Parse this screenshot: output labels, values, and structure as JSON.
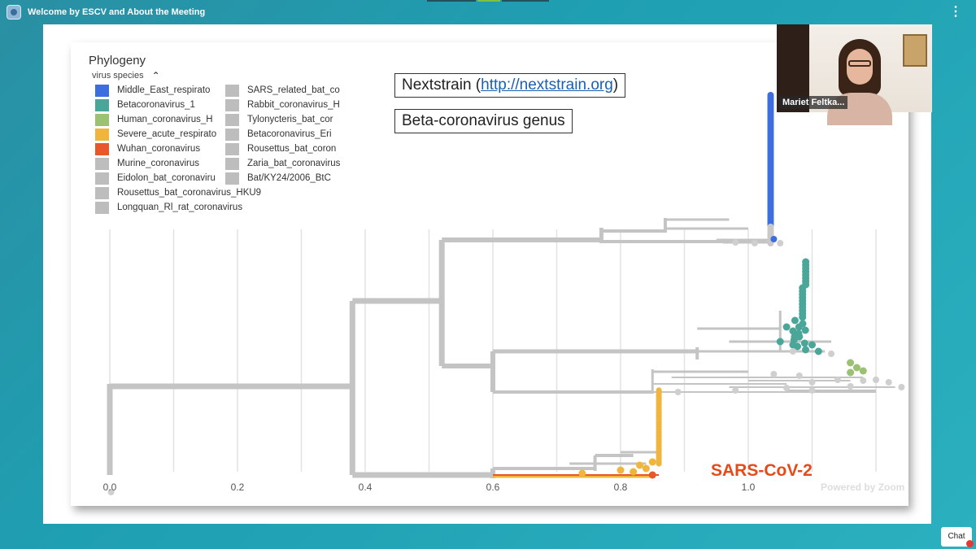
{
  "window": {
    "title": "Welcome by ESCV and About the Meeting",
    "more_icon": "more-dots-icon",
    "app_icon": "zoom-app-icon"
  },
  "slide": {
    "phylogeny_title": "Phylogeny",
    "legend_header": "virus species",
    "legend_toggle_icon": "chevron-up-icon",
    "legend": [
      {
        "label": "Middle_East_respirato",
        "color": "#3d6ee0"
      },
      {
        "label": "Betacoronavirus_1",
        "color": "#4aa699"
      },
      {
        "label": "Human_coronavirus_H",
        "color": "#9bc272"
      },
      {
        "label": "Severe_acute_respirato",
        "color": "#f0b53c"
      },
      {
        "label": "Wuhan_coronavirus",
        "color": "#e8572a"
      },
      {
        "label": "Murine_coronavirus",
        "color": "#bdbdbd"
      },
      {
        "label": "Eidolon_bat_coronaviru",
        "color": "#bdbdbd"
      },
      {
        "label": "Rousettus_bat_coronavirus_HKU9",
        "color": "#bdbdbd"
      },
      {
        "label": "Longquan_Rl_rat_coronavirus",
        "color": "#bdbdbd"
      },
      {
        "label": "SARS_related_bat_co",
        "color": "#bdbdbd"
      },
      {
        "label": "Rabbit_coronavirus_H",
        "color": "#bdbdbd"
      },
      {
        "label": "Tylonycteris_bat_cor",
        "color": "#bdbdbd"
      },
      {
        "label": "Betacoronavirus_Eri",
        "color": "#bdbdbd"
      },
      {
        "label": "Rousettus_bat_coron",
        "color": "#bdbdbd"
      },
      {
        "label": "Zaria_bat_coronavirus",
        "color": "#bdbdbd"
      },
      {
        "label": "Bat/KY24/2006_BtC",
        "color": "#bdbdbd"
      }
    ],
    "nextstrain_prefix": "Nextstrain (",
    "nextstrain_link": "http://nextstrain.org",
    "nextstrain_suffix": ")",
    "genus_label": "Beta-coronavirus genus",
    "sars_label": "SARS-CoV-2",
    "watermark": "Powered by Zoom",
    "x_ticks": [
      "0.0",
      "0.2",
      "0.4",
      "0.6",
      "0.8",
      "1.0"
    ]
  },
  "chart_data": {
    "type": "scatter",
    "title": "Phylogeny",
    "xlabel": "",
    "ylabel": "",
    "xlim": [
      0,
      1.2
    ],
    "x_ticks": [
      0.0,
      0.2,
      0.4,
      0.6,
      0.8,
      1.0
    ],
    "series": [
      {
        "name": "Middle_East_respirato",
        "color": "#3d6ee0",
        "x": [
          1.03,
          1.03,
          1.03,
          1.03,
          1.03,
          1.03
        ],
        "y_rank": [
          1,
          2,
          3,
          4,
          5,
          6
        ]
      },
      {
        "name": "Betacoronavirus_1",
        "color": "#4aa699",
        "x": [
          1.12,
          1.1,
          1.08,
          1.06,
          1.1
        ],
        "y_rank": [
          7,
          8,
          9,
          10,
          11
        ]
      },
      {
        "name": "Human_coronavirus_H",
        "color": "#9bc272",
        "x": [
          1.16,
          1.17
        ],
        "y_rank": [
          12,
          13
        ]
      },
      {
        "name": "Severe_acute_respirato",
        "color": "#f0b53c",
        "x": [
          0.87,
          0.87,
          0.84,
          0.8,
          0.73
        ],
        "y_rank": [
          14,
          15,
          16,
          17,
          18
        ]
      },
      {
        "name": "Wuhan_coronavirus",
        "color": "#e8572a",
        "x": [
          0.85
        ],
        "y_rank": [
          19
        ]
      }
    ]
  },
  "video": {
    "participant_name": "Mariet Feltka..."
  },
  "chat": {
    "label": "Chat"
  }
}
